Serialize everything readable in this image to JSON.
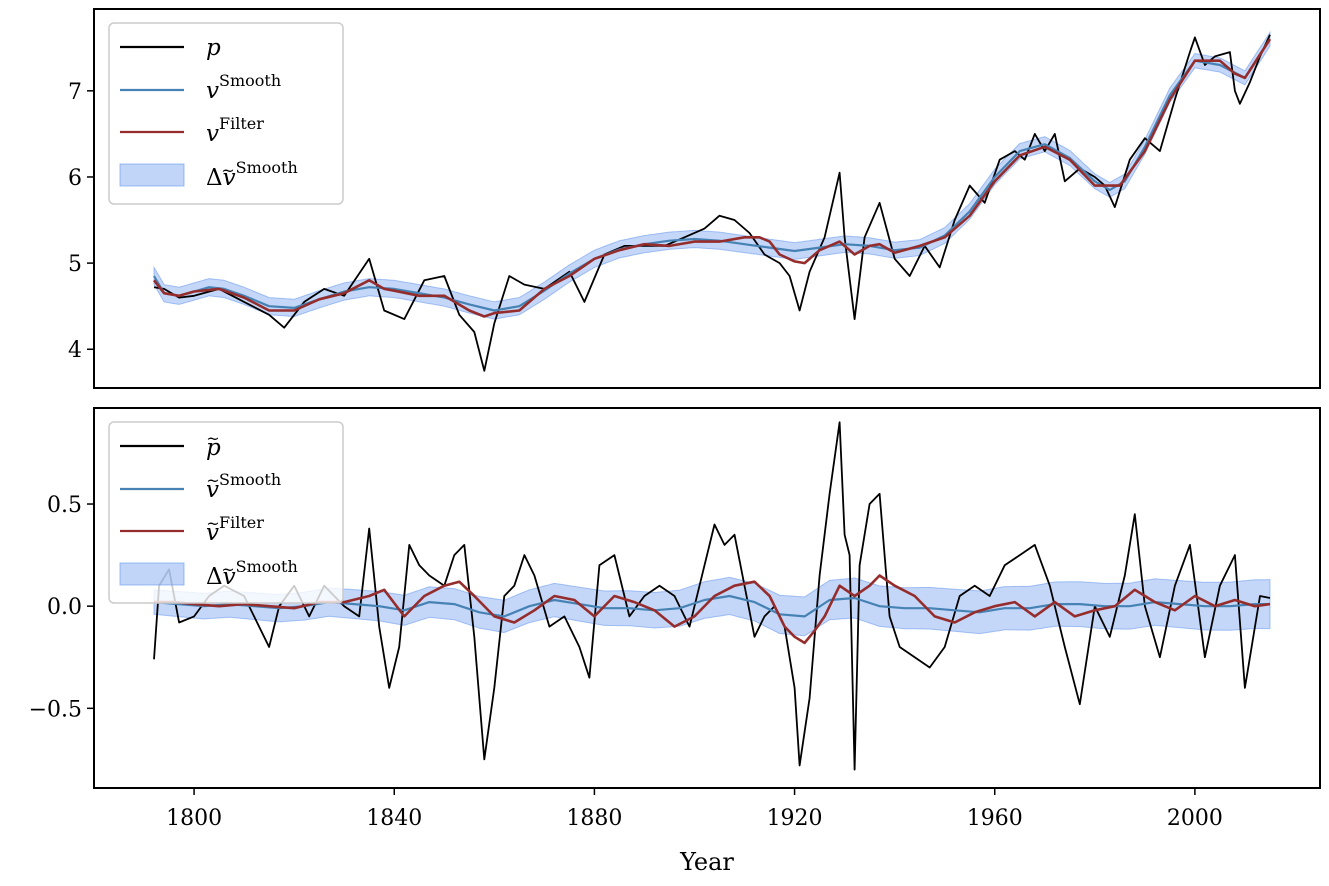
{
  "chart_data": [
    {
      "type": "line",
      "panel": "top",
      "xlim": [
        1780,
        2025
      ],
      "ylim": [
        3.55,
        7.95
      ],
      "yticks": [
        4,
        5,
        6,
        7
      ],
      "ytick_labels": [
        "4",
        "5",
        "6",
        "7"
      ],
      "xtick_labels": [],
      "xlabel": "",
      "legend_position": "upper left",
      "legend": [
        {
          "symbol": "p",
          "sup": "",
          "tilde": false,
          "delta": false
        },
        {
          "symbol": "v",
          "sup": "Smooth",
          "tilde": false,
          "delta": false
        },
        {
          "symbol": "v",
          "sup": "Filter",
          "tilde": false,
          "delta": false
        },
        {
          "symbol": "v",
          "sup": "Smooth",
          "tilde": true,
          "delta": true
        }
      ],
      "series": [
        {
          "name": "p",
          "color": "#000000",
          "x": [
            1792,
            1794,
            1797,
            1800,
            1805,
            1810,
            1815,
            1818,
            1822,
            1826,
            1830,
            1835,
            1838,
            1842,
            1846,
            1850,
            1853,
            1856,
            1858,
            1860,
            1863,
            1866,
            1870,
            1875,
            1878,
            1882,
            1886,
            1890,
            1894,
            1898,
            1902,
            1905,
            1908,
            1911,
            1914,
            1917,
            1919,
            1921,
            1923,
            1926,
            1929,
            1930,
            1932,
            1934,
            1937,
            1940,
            1943,
            1946,
            1949,
            1952,
            1955,
            1958,
            1961,
            1964,
            1966,
            1968,
            1970,
            1972,
            1974,
            1977,
            1980,
            1982,
            1984,
            1987,
            1990,
            1993,
            1996,
            1999,
            2000,
            2002,
            2004,
            2007,
            2008,
            2009,
            2011,
            2013,
            2015
          ],
          "y": [
            4.72,
            4.7,
            4.6,
            4.62,
            4.7,
            4.55,
            4.4,
            4.25,
            4.55,
            4.7,
            4.62,
            5.05,
            4.45,
            4.35,
            4.8,
            4.85,
            4.4,
            4.2,
            3.75,
            4.3,
            4.85,
            4.75,
            4.7,
            4.9,
            4.55,
            5.1,
            5.2,
            5.2,
            5.2,
            5.3,
            5.4,
            5.55,
            5.5,
            5.35,
            5.1,
            5.0,
            4.85,
            4.45,
            4.9,
            5.3,
            6.05,
            5.3,
            4.35,
            5.3,
            5.7,
            5.05,
            4.85,
            5.2,
            4.95,
            5.5,
            5.9,
            5.7,
            6.2,
            6.3,
            6.2,
            6.5,
            6.3,
            6.5,
            5.95,
            6.1,
            6.0,
            5.9,
            5.65,
            6.2,
            6.45,
            6.3,
            6.9,
            7.45,
            7.62,
            7.3,
            7.4,
            7.45,
            7.0,
            6.85,
            7.1,
            7.4,
            7.65
          ]
        },
        {
          "name": "v Smooth",
          "color": "#4682b4",
          "x": [
            1792,
            1794,
            1797,
            1800,
            1803,
            1806,
            1810,
            1815,
            1820,
            1825,
            1830,
            1835,
            1840,
            1845,
            1850,
            1855,
            1860,
            1865,
            1870,
            1875,
            1880,
            1885,
            1890,
            1895,
            1900,
            1905,
            1910,
            1915,
            1920,
            1925,
            1930,
            1935,
            1940,
            1945,
            1950,
            1955,
            1960,
            1965,
            1970,
            1975,
            1980,
            1983,
            1986,
            1990,
            1995,
            2000,
            2005,
            2010,
            2015
          ],
          "y": [
            4.85,
            4.65,
            4.62,
            4.67,
            4.72,
            4.7,
            4.62,
            4.5,
            4.48,
            4.58,
            4.67,
            4.72,
            4.7,
            4.65,
            4.6,
            4.52,
            4.45,
            4.5,
            4.68,
            4.88,
            5.05,
            5.16,
            5.22,
            5.26,
            5.28,
            5.26,
            5.22,
            5.18,
            5.14,
            5.18,
            5.22,
            5.2,
            5.15,
            5.18,
            5.32,
            5.6,
            6.0,
            6.3,
            6.38,
            6.22,
            5.95,
            5.85,
            5.95,
            6.35,
            6.95,
            7.35,
            7.3,
            7.15,
            7.6
          ]
        },
        {
          "name": "v Filter",
          "color": "#962d2d",
          "x": [
            1792,
            1794,
            1797,
            1800,
            1805,
            1810,
            1815,
            1820,
            1825,
            1830,
            1835,
            1838,
            1840,
            1845,
            1850,
            1855,
            1858,
            1860,
            1865,
            1870,
            1875,
            1880,
            1885,
            1890,
            1895,
            1900,
            1905,
            1910,
            1913,
            1915,
            1917,
            1920,
            1922,
            1925,
            1929,
            1932,
            1935,
            1937,
            1940,
            1945,
            1950,
            1955,
            1960,
            1965,
            1970,
            1975,
            1980,
            1985,
            1990,
            1995,
            2000,
            2005,
            2008,
            2010,
            2015
          ],
          "y": [
            4.8,
            4.65,
            4.62,
            4.67,
            4.7,
            4.6,
            4.45,
            4.45,
            4.58,
            4.65,
            4.8,
            4.7,
            4.68,
            4.62,
            4.62,
            4.45,
            4.38,
            4.42,
            4.45,
            4.7,
            4.85,
            5.05,
            5.15,
            5.22,
            5.2,
            5.25,
            5.25,
            5.3,
            5.3,
            5.25,
            5.1,
            5.02,
            5.0,
            5.15,
            5.25,
            5.1,
            5.2,
            5.22,
            5.12,
            5.2,
            5.3,
            5.55,
            5.95,
            6.25,
            6.35,
            6.2,
            5.9,
            5.9,
            6.3,
            6.9,
            7.35,
            7.35,
            7.2,
            7.15,
            7.6
          ]
        }
      ],
      "band": {
        "name": "Δṽ Smooth",
        "color": "#6495ed",
        "halfwidth": [
          0.1,
          0.1,
          0.08
        ]
      }
    },
    {
      "type": "line",
      "panel": "bottom",
      "xlim": [
        1780,
        2025
      ],
      "ylim": [
        -0.89,
        0.97
      ],
      "yticks": [
        -0.5,
        0.0,
        0.5
      ],
      "ytick_labels": [
        "−0.5",
        "0.0",
        "0.5"
      ],
      "xticks": [
        1800,
        1840,
        1880,
        1920,
        1960,
        2000
      ],
      "xtick_labels": [
        "1800",
        "1840",
        "1880",
        "1920",
        "1960",
        "2000"
      ],
      "xlabel": "Year",
      "legend_position": "upper left",
      "legend": [
        {
          "symbol": "p",
          "sup": "",
          "tilde": true,
          "delta": false
        },
        {
          "symbol": "v",
          "sup": "Smooth",
          "tilde": true,
          "delta": false
        },
        {
          "symbol": "v",
          "sup": "Filter",
          "tilde": true,
          "delta": false
        },
        {
          "symbol": "v",
          "sup": "Smooth",
          "tilde": true,
          "delta": true
        }
      ],
      "series": [
        {
          "name": "p̃",
          "color": "#000000",
          "x": [
            1792,
            1793,
            1795,
            1797,
            1800,
            1803,
            1806,
            1810,
            1813,
            1815,
            1817,
            1820,
            1823,
            1826,
            1830,
            1833,
            1835,
            1837,
            1839,
            1841,
            1843,
            1845,
            1847,
            1850,
            1852,
            1854,
            1856,
            1858,
            1860,
            1862,
            1864,
            1866,
            1868,
            1871,
            1874,
            1877,
            1879,
            1881,
            1884,
            1887,
            1890,
            1893,
            1896,
            1899,
            1902,
            1904,
            1906,
            1908,
            1910,
            1912,
            1914,
            1916,
            1918,
            1920,
            1921,
            1923,
            1925,
            1927,
            1929,
            1930,
            1931,
            1932,
            1933,
            1935,
            1937,
            1939,
            1941,
            1944,
            1947,
            1950,
            1953,
            1956,
            1959,
            1962,
            1965,
            1968,
            1971,
            1974,
            1977,
            1980,
            1983,
            1986,
            1988,
            1990,
            1993,
            1996,
            1999,
            2002,
            2005,
            2008,
            2010,
            2013,
            2015
          ],
          "y": [
            -0.26,
            0.1,
            0.18,
            -0.08,
            -0.05,
            0.05,
            0.1,
            0.05,
            -0.1,
            -0.2,
            0.0,
            0.1,
            -0.05,
            0.1,
            0.0,
            -0.05,
            0.38,
            -0.1,
            -0.4,
            -0.2,
            0.3,
            0.2,
            0.15,
            0.1,
            0.25,
            0.3,
            -0.15,
            -0.75,
            -0.4,
            0.05,
            0.1,
            0.25,
            0.15,
            -0.1,
            -0.05,
            -0.2,
            -0.35,
            0.2,
            0.25,
            -0.05,
            0.05,
            0.1,
            0.05,
            -0.1,
            0.2,
            0.4,
            0.3,
            0.35,
            0.1,
            -0.15,
            -0.05,
            0.0,
            -0.1,
            -0.4,
            -0.78,
            -0.45,
            0.15,
            0.55,
            0.9,
            0.35,
            0.25,
            -0.8,
            0.2,
            0.5,
            0.55,
            -0.05,
            -0.2,
            -0.25,
            -0.3,
            -0.2,
            0.05,
            0.1,
            0.05,
            0.2,
            0.25,
            0.3,
            0.1,
            -0.2,
            -0.48,
            0.0,
            -0.15,
            0.15,
            0.45,
            0.0,
            -0.25,
            0.1,
            0.3,
            -0.25,
            0.1,
            0.25,
            -0.4,
            0.05,
            0.04
          ]
        },
        {
          "name": "ṽ Smooth",
          "color": "#4682b4",
          "x": [
            1792,
            1797,
            1802,
            1807,
            1812,
            1817,
            1822,
            1827,
            1832,
            1837,
            1842,
            1847,
            1852,
            1857,
            1862,
            1867,
            1872,
            1877,
            1882,
            1887,
            1892,
            1897,
            1902,
            1907,
            1912,
            1917,
            1922,
            1927,
            1932,
            1937,
            1942,
            1947,
            1952,
            1957,
            1962,
            1967,
            1972,
            1977,
            1982,
            1987,
            1992,
            1997,
            2002,
            2007,
            2012,
            2015
          ],
          "y": [
            0.02,
            0.01,
            0.0,
            0.01,
            0.0,
            -0.01,
            0.0,
            0.02,
            0.01,
            0.0,
            -0.02,
            0.02,
            0.01,
            -0.03,
            -0.05,
            0.0,
            0.03,
            0.01,
            -0.01,
            -0.01,
            -0.02,
            -0.01,
            0.03,
            0.05,
            0.02,
            -0.04,
            -0.05,
            0.03,
            0.04,
            0.0,
            -0.01,
            -0.01,
            -0.02,
            -0.03,
            -0.01,
            -0.01,
            0.01,
            0.01,
            0.0,
            0.0,
            0.02,
            0.01,
            0.0,
            0.0,
            0.01,
            0.01
          ]
        },
        {
          "name": "ṽ Filter",
          "color": "#962d2d",
          "x": [
            1792,
            1796,
            1800,
            1805,
            1810,
            1815,
            1820,
            1825,
            1830,
            1835,
            1838,
            1842,
            1846,
            1850,
            1853,
            1856,
            1860,
            1864,
            1868,
            1872,
            1876,
            1880,
            1884,
            1888,
            1892,
            1896,
            1900,
            1904,
            1908,
            1912,
            1915,
            1918,
            1920,
            1922,
            1924,
            1926,
            1929,
            1932,
            1935,
            1937,
            1940,
            1944,
            1948,
            1952,
            1956,
            1960,
            1964,
            1968,
            1972,
            1976,
            1980,
            1984,
            1988,
            1992,
            1996,
            2000,
            2004,
            2008,
            2012,
            2015
          ],
          "y": [
            0.02,
            0.02,
            0.01,
            0.0,
            0.01,
            0.0,
            -0.01,
            0.02,
            0.02,
            0.05,
            0.08,
            -0.05,
            0.05,
            0.1,
            0.12,
            0.05,
            -0.05,
            -0.08,
            -0.02,
            0.05,
            0.03,
            -0.05,
            0.05,
            0.02,
            -0.02,
            -0.1,
            -0.05,
            0.05,
            0.1,
            0.12,
            0.05,
            -0.1,
            -0.15,
            -0.18,
            -0.12,
            -0.05,
            0.1,
            0.05,
            0.1,
            0.15,
            0.1,
            0.05,
            -0.05,
            -0.08,
            -0.03,
            0.0,
            0.02,
            -0.05,
            0.02,
            -0.05,
            -0.02,
            0.0,
            0.08,
            0.02,
            -0.02,
            0.05,
            0.0,
            0.03,
            0.0,
            0.01
          ]
        }
      ],
      "band": {
        "name": "Δṽ Smooth",
        "color": "#6495ed",
        "halfwidth": [
          0.06,
          0.09,
          0.12
        ]
      }
    }
  ]
}
